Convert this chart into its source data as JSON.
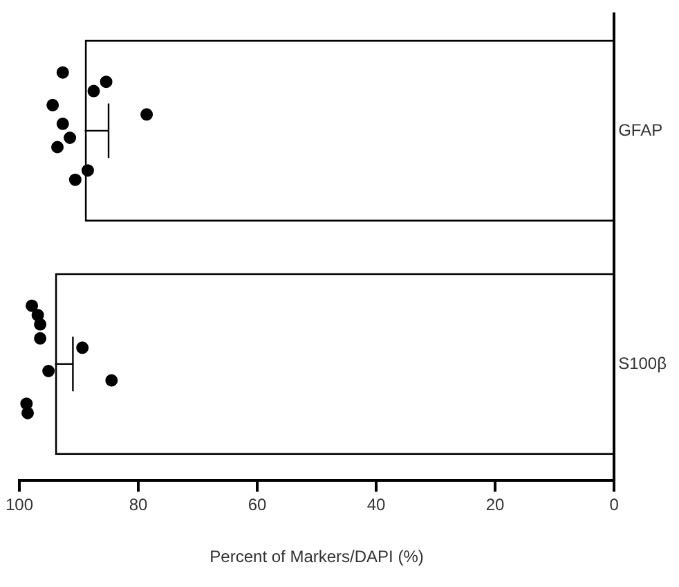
{
  "chart_data": {
    "type": "bar",
    "orientation": "horizontal",
    "xlabel": "Percent of Markers/DAPI (%)",
    "categories": [
      "GFAP",
      "S100β"
    ],
    "xlim": [
      100,
      0
    ],
    "xticks": [
      100,
      80,
      60,
      40,
      20,
      0
    ],
    "grid": false,
    "legend": false,
    "marker": "circle",
    "series": [
      {
        "color": "#ffffff",
        "values": [
          89,
          94
        ],
        "errors": [
          [
            85,
            89
          ],
          [
            91,
            94
          ]
        ]
      },
      {
        "type": "scatter",
        "color": "#000000",
        "x": [
          "GFAP",
          "GFAP",
          "GFAP",
          "GFAP",
          "GFAP",
          "GFAP",
          "GFAP",
          "GFAP",
          "GFAP",
          "GFAP",
          "S100β",
          "S100β",
          "S100β",
          "S100β",
          "S100β",
          "S100β",
          "S100β",
          "S100β",
          "S100β"
        ],
        "values": [
          92.7,
          94.4,
          91.5,
          88.5,
          85.4,
          78.6,
          93.6,
          90.6,
          87.5,
          92.7,
          97.9,
          96.5,
          95.1,
          98.8,
          96.9,
          89.4,
          84.5,
          98.6,
          96.5
        ]
      }
    ]
  }
}
